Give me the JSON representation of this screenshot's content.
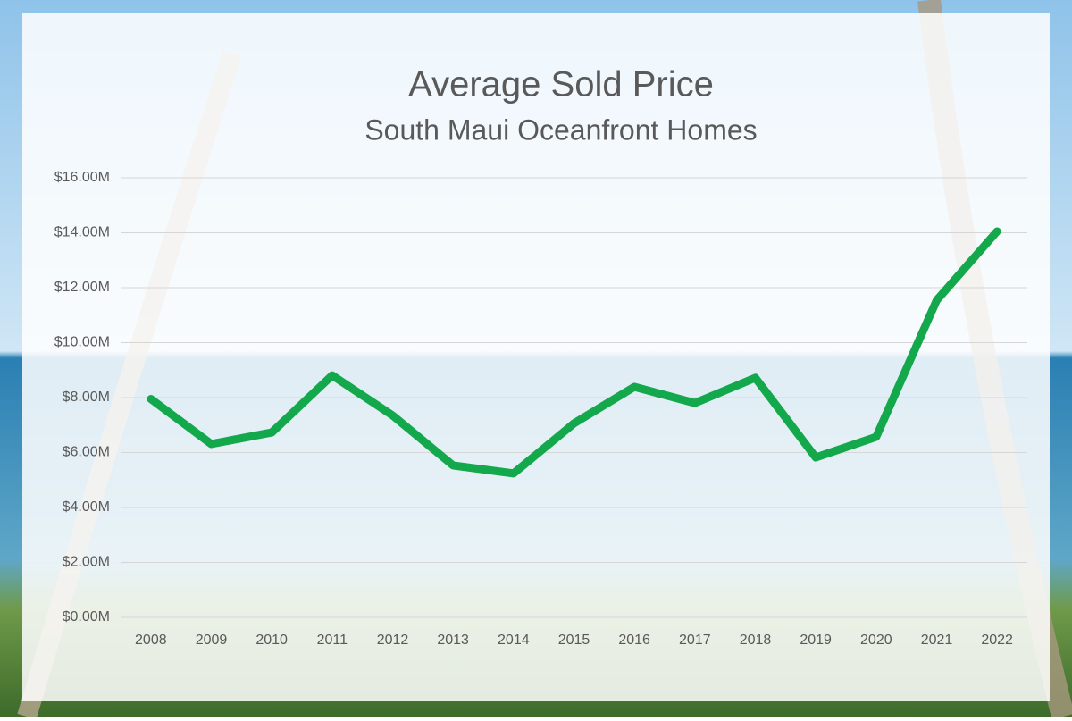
{
  "chart_data": {
    "type": "line",
    "title": "Average Sold Price",
    "subtitle": "South Maui Oceanfront Homes",
    "categories": [
      "2008",
      "2009",
      "2010",
      "2011",
      "2012",
      "2013",
      "2014",
      "2015",
      "2016",
      "2017",
      "2018",
      "2019",
      "2020",
      "2021",
      "2022"
    ],
    "series": [
      {
        "color": "#13a84b",
        "values": [
          7950000,
          6310000,
          6730000,
          8810000,
          7350000,
          5530000,
          5240000,
          7060000,
          8390000,
          7800000,
          8720000,
          5820000,
          6570000,
          11540000,
          14050000
        ]
      }
    ],
    "ylim": [
      0,
      16000000
    ],
    "yticks": [
      {
        "value": 0,
        "label": "$0.00M"
      },
      {
        "value": 2000000,
        "label": "$2.00M"
      },
      {
        "value": 4000000,
        "label": "$4.00M"
      },
      {
        "value": 6000000,
        "label": "$6.00M"
      },
      {
        "value": 8000000,
        "label": "$8.00M"
      },
      {
        "value": 10000000,
        "label": "$10.00M"
      },
      {
        "value": 12000000,
        "label": "$12.00M"
      },
      {
        "value": 14000000,
        "label": "$14.00M"
      },
      {
        "value": 16000000,
        "label": "$16.00M"
      }
    ],
    "grid": true
  }
}
